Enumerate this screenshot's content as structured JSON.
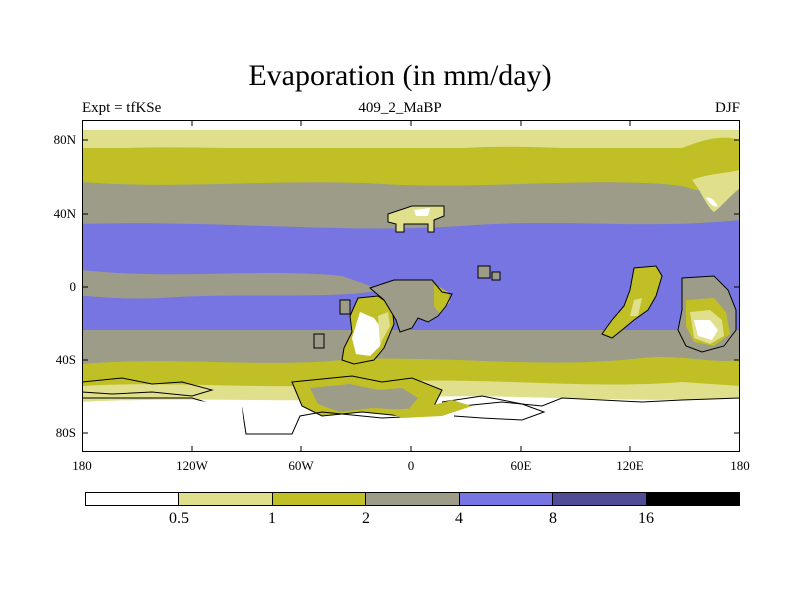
{
  "title": "Evaporation (in mm/day)",
  "left_label": "Expt = tfKSe",
  "center_label": "409_2_MaBP",
  "right_label": "DJF",
  "y_ticks": [
    {
      "label": "80N",
      "lat": 80
    },
    {
      "label": "40N",
      "lat": 40
    },
    {
      "label": "0",
      "lat": 0
    },
    {
      "label": "40S",
      "lat": -40
    },
    {
      "label": "80S",
      "lat": -80
    }
  ],
  "x_ticks": [
    {
      "label": "180",
      "lon": -180
    },
    {
      "label": "120W",
      "lon": -120
    },
    {
      "label": "60W",
      "lon": -60
    },
    {
      "label": "0",
      "lon": 0
    },
    {
      "label": "60E",
      "lon": 60
    },
    {
      "label": "120E",
      "lon": 120
    },
    {
      "label": "180",
      "lon": 180
    }
  ],
  "colorbar": {
    "colors": [
      "#ffffff",
      "#e0df8c",
      "#c0bf26",
      "#9c9c88",
      "#7675e2",
      "#4e4d96",
      "#000000"
    ],
    "labels": [
      "0.5",
      "1",
      "2",
      "4",
      "8",
      "16"
    ]
  },
  "colors": {
    "white": "#ffffff",
    "light_yellow": "#e0df8c",
    "olive": "#c0bf26",
    "gray": "#9c9c88",
    "blue": "#7675e2",
    "dark_blue": "#4e4d96",
    "coastline": "#000000"
  }
}
